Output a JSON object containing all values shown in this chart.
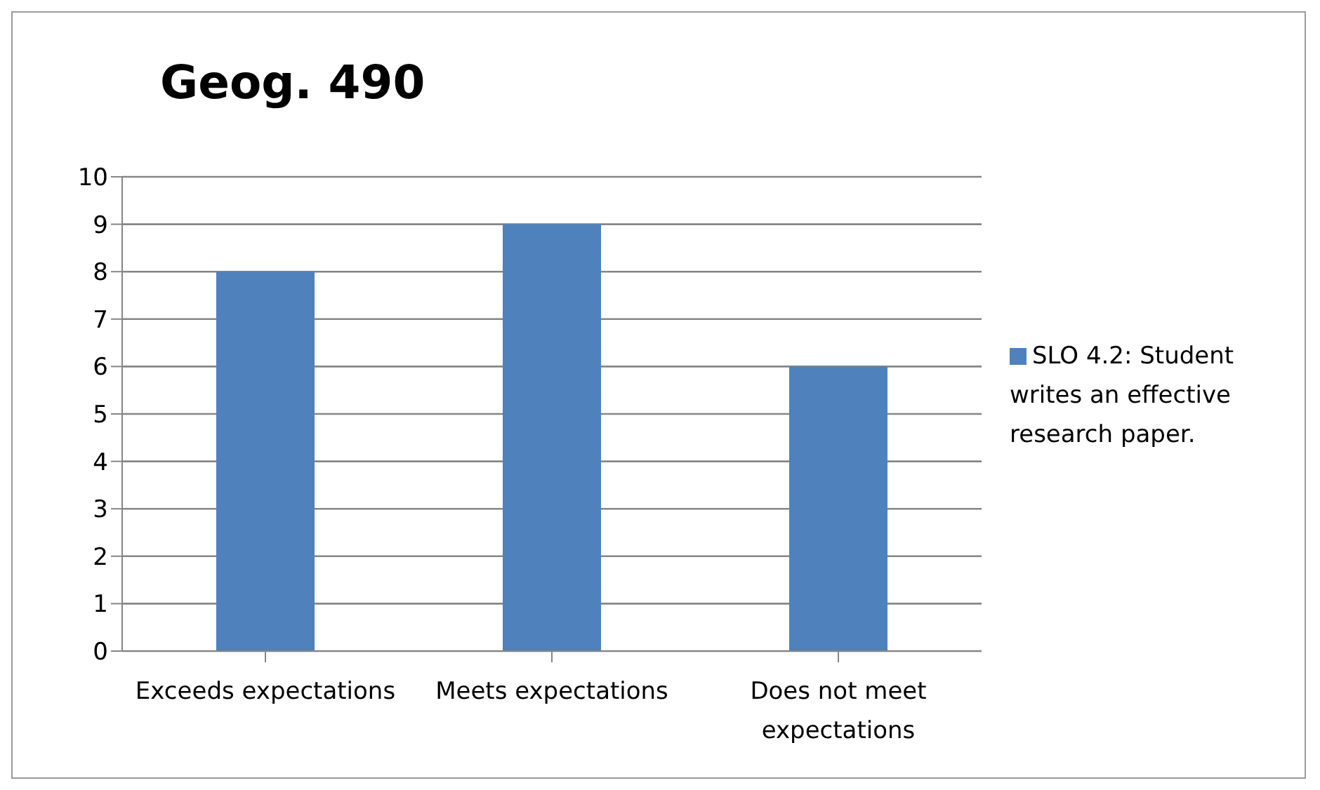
{
  "chart_data": {
    "type": "bar",
    "title": "Geog. 490",
    "categories": [
      "Exceeds expectations",
      "Meets expectations",
      "Does not meet expectations"
    ],
    "series": [
      {
        "name": "SLO 4.2: Student writes an effective research paper.",
        "color": "#4f81bd",
        "values": [
          8,
          9,
          6
        ]
      }
    ],
    "ylim": [
      0,
      10
    ],
    "yticks": [
      0,
      1,
      2,
      3,
      4,
      5,
      6,
      7,
      8,
      9,
      10
    ],
    "grid": "y",
    "legend": "right"
  }
}
